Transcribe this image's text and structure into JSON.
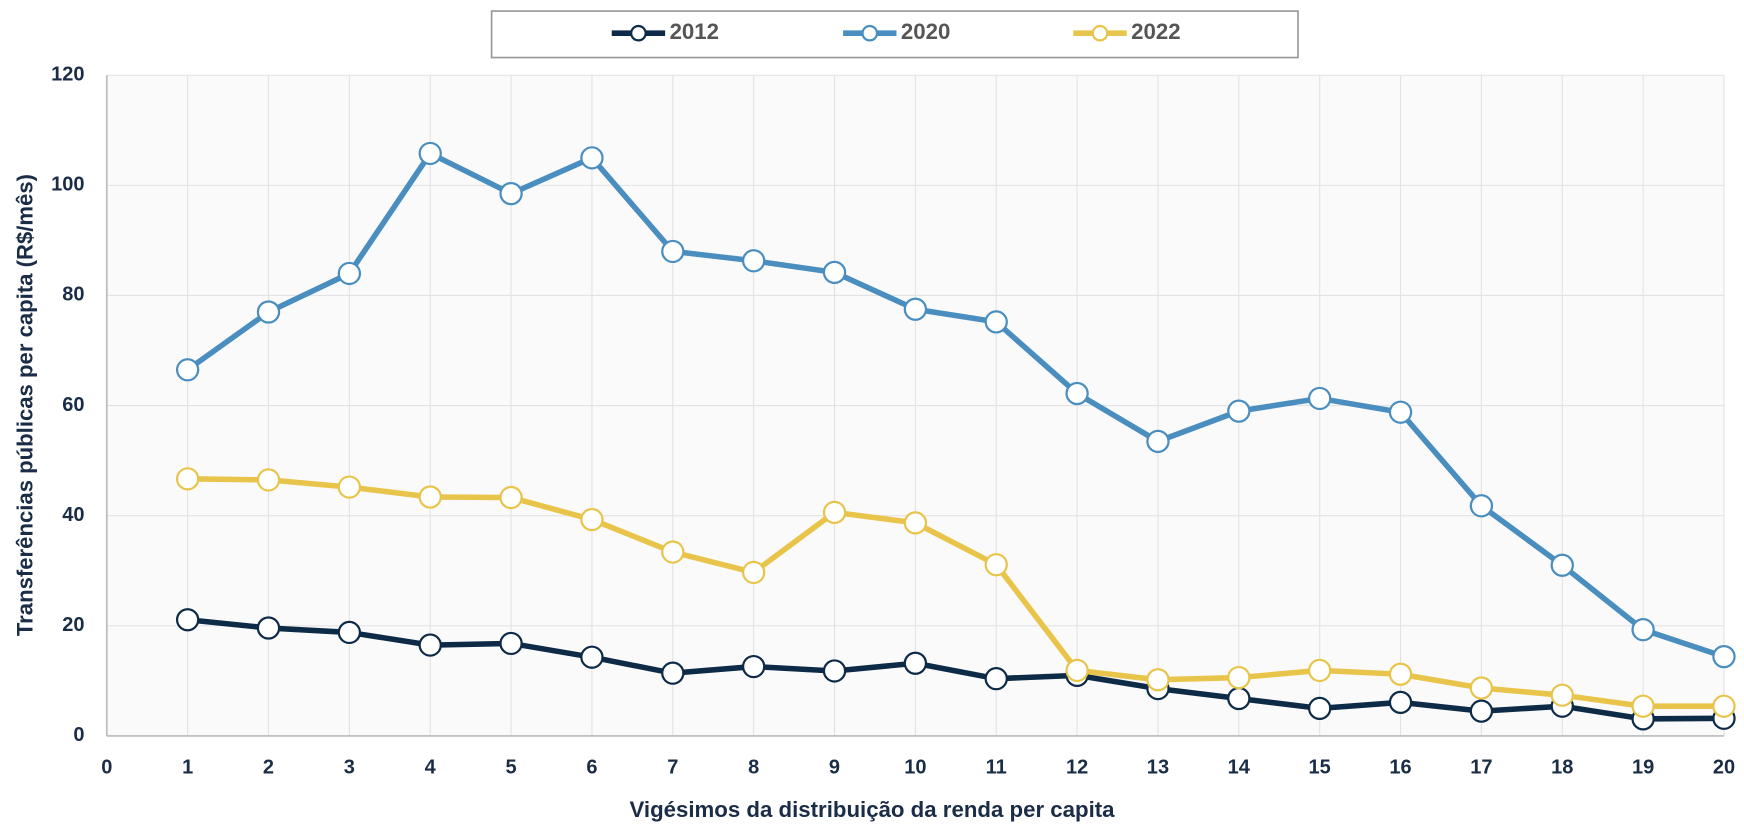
{
  "chart_data": {
    "type": "line",
    "x_label": "Vigésimos da distribuição da renda per capita",
    "y_label": "Transferências públicas per capita (R$/mês)",
    "x": [
      1,
      2,
      3,
      4,
      5,
      6,
      7,
      8,
      9,
      10,
      11,
      12,
      13,
      14,
      15,
      16,
      17,
      18,
      19,
      20
    ],
    "series": [
      {
        "name": "2012",
        "color": "#0d2a47",
        "values": [
          21.1,
          19.6,
          18.8,
          16.5,
          16.8,
          14.3,
          11.4,
          12.6,
          11.8,
          13.2,
          10.4,
          11.0,
          8.6,
          6.8,
          5.0,
          6.1,
          4.5,
          5.4,
          3.1,
          3.2
        ]
      },
      {
        "name": "2020",
        "color": "#4a8ec0",
        "values": [
          66.5,
          77,
          84,
          105.8,
          98.5,
          105,
          88,
          86.3,
          84.2,
          77.5,
          75.2,
          62.2,
          53.5,
          59,
          61.3,
          58.8,
          41.8,
          31,
          19.3,
          14.4
        ]
      },
      {
        "name": "2022",
        "color": "#e8c54a",
        "values": [
          46.7,
          46.5,
          45.2,
          43.4,
          43.3,
          39.3,
          33.4,
          29.7,
          40.6,
          38.7,
          31.1,
          11.9,
          10.2,
          10.6,
          11.9,
          11.2,
          8.7,
          7.4,
          5.4,
          5.4
        ]
      }
    ],
    "xlim": [
      0,
      20
    ],
    "xticks": [
      0,
      1,
      2,
      3,
      4,
      5,
      6,
      7,
      8,
      9,
      10,
      11,
      12,
      13,
      14,
      15,
      16,
      17,
      18,
      19,
      20
    ],
    "ylim": [
      0,
      120
    ],
    "yticks": [
      0,
      20,
      40,
      60,
      80,
      100,
      120
    ],
    "grid": true,
    "legend": "top"
  }
}
